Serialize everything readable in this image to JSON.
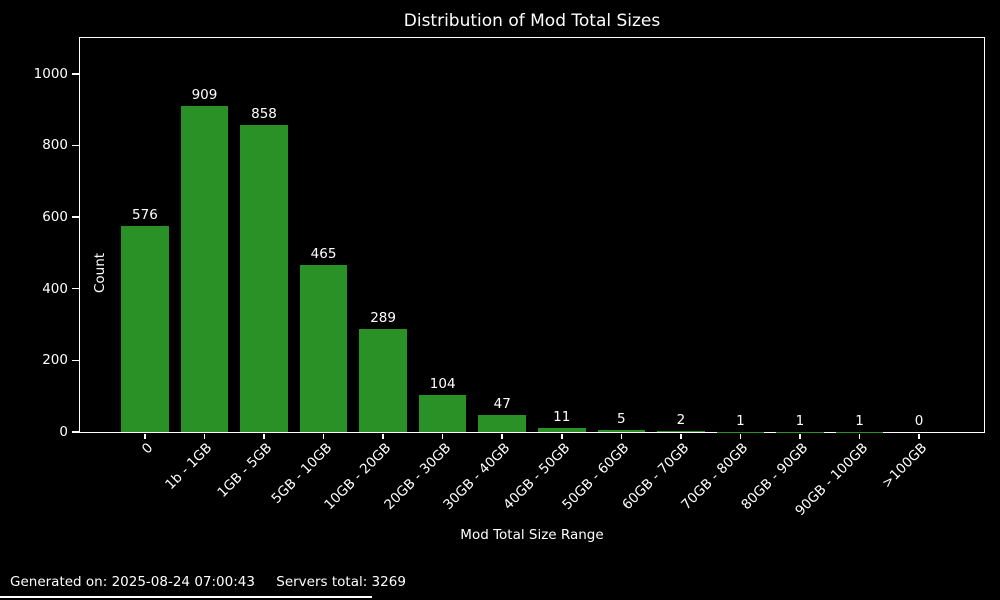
{
  "chart_data": {
    "type": "bar",
    "title": "Distribution of Mod Total Sizes",
    "xlabel": "Mod Total Size Range",
    "ylabel": "Count",
    "categories": [
      "0",
      "1b - 1GB",
      "1GB - 5GB",
      "5GB - 10GB",
      "10GB - 20GB",
      "20GB - 30GB",
      "30GB - 40GB",
      "40GB - 50GB",
      "50GB - 60GB",
      "60GB - 70GB",
      "70GB - 80GB",
      "80GB - 90GB",
      "90GB - 100GB",
      ">100GB"
    ],
    "values": [
      576,
      909,
      858,
      465,
      289,
      104,
      47,
      11,
      5,
      2,
      1,
      1,
      1,
      0
    ],
    "yticks": [
      0,
      200,
      400,
      600,
      800,
      1000
    ],
    "ylim": [
      0,
      1100
    ],
    "grid": false,
    "legend": false,
    "bar_color": "#2a9127",
    "background_color": "#000000",
    "text_color": "#ffffff"
  },
  "footer": {
    "generated_on": "Generated on: 2025-08-24 07:00:43",
    "servers_total": "Servers total: 3269"
  }
}
